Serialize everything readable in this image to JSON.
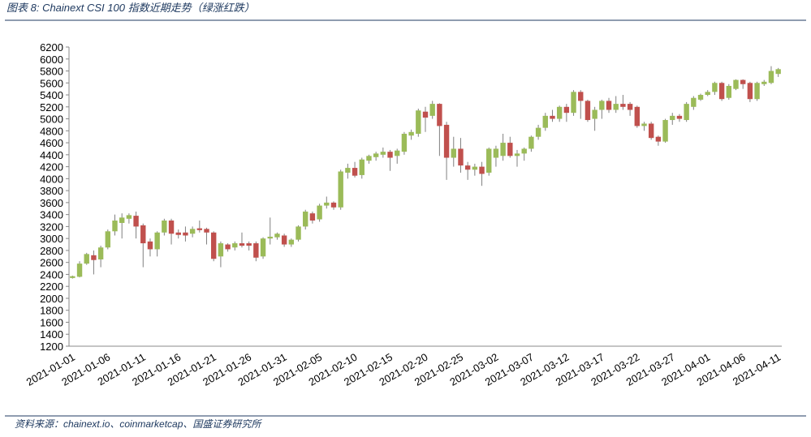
{
  "chart_data": {
    "type": "candlestick",
    "title": "图表 8:  Chainext CSI 100 指数近期走势（绿涨红跌）",
    "source": "资料来源：chainext.io、coinmarketcap、国盛证券研究所",
    "up_color": "#9bbb59",
    "down_color": "#c0504d",
    "wick_color": "#808080",
    "categories": [
      "2021-01-01",
      null,
      null,
      null,
      null,
      "2021-01-06",
      null,
      null,
      null,
      null,
      "2021-01-11",
      null,
      null,
      null,
      null,
      "2021-01-16",
      null,
      null,
      null,
      null,
      "2021-01-21",
      null,
      null,
      null,
      null,
      "2021-01-26",
      null,
      null,
      null,
      null,
      "2021-01-31",
      null,
      null,
      null,
      null,
      "2021-02-05",
      null,
      null,
      null,
      null,
      "2021-02-10",
      null,
      null,
      null,
      null,
      "2021-02-15",
      null,
      null,
      null,
      null,
      "2021-02-20",
      null,
      null,
      null,
      null,
      "2021-02-25",
      null,
      null,
      null,
      null,
      "2021-03-02",
      null,
      null,
      null,
      null,
      "2021-03-07",
      null,
      null,
      null,
      null,
      "2021-03-12",
      null,
      null,
      null,
      null,
      "2021-03-17",
      null,
      null,
      null,
      null,
      "2021-03-22",
      null,
      null,
      null,
      null,
      "2021-03-27",
      null,
      null,
      null,
      null,
      "2021-04-01",
      null,
      null,
      null,
      null,
      "2021-04-06",
      null,
      null,
      null,
      null,
      "2021-04-11"
    ],
    "open": [
      2340,
      2360,
      2580,
      2720,
      2650,
      2850,
      3120,
      3260,
      3330,
      3380,
      3220,
      2950,
      2820,
      3100,
      3300,
      3100,
      3100,
      3080,
      3170,
      3160,
      3100,
      2700,
      2900,
      2850,
      2920,
      2920,
      2920,
      2700,
      3000,
      3020,
      3050,
      2900,
      2980,
      3200,
      3420,
      3320,
      3550,
      3600,
      3520,
      4100,
      4180,
      4060,
      4300,
      4360,
      4400,
      4450,
      4380,
      4450,
      4720,
      4750,
      5120,
      5050,
      5250,
      4900,
      4350,
      4500,
      4220,
      4150,
      4200,
      4100,
      4350,
      4380,
      4600,
      4380,
      4420,
      4500,
      4700,
      4850,
      5050,
      5000,
      5200,
      5100,
      5450,
      5300,
      5000,
      5150,
      5300,
      5150,
      5250,
      5250,
      5200,
      4880,
      4920,
      4700,
      4620,
      4980,
      5050,
      4980,
      5200,
      5320,
      5400,
      5450,
      5600,
      5350,
      5500,
      5650,
      5600,
      5330,
      5580,
      5600,
      5750
    ],
    "high": [
      2380,
      2620,
      2760,
      2800,
      2880,
      3150,
      3400,
      3420,
      3420,
      3450,
      3250,
      3000,
      3120,
      3330,
      3330,
      3150,
      3200,
      3200,
      3300,
      3180,
      3120,
      2950,
      2920,
      2950,
      3100,
      2950,
      2950,
      3020,
      3350,
      3100,
      3080,
      3000,
      3220,
      3480,
      3450,
      3580,
      3700,
      3620,
      4150,
      4250,
      4280,
      4350,
      4400,
      4450,
      4520,
      4480,
      4500,
      4780,
      4820,
      5170,
      5200,
      5300,
      5260,
      4950,
      4700,
      4680,
      4280,
      4250,
      4280,
      4520,
      4550,
      4750,
      4700,
      4480,
      4520,
      4720,
      4900,
      5100,
      5150,
      5220,
      5250,
      5480,
      5480,
      5320,
      5200,
      5320,
      5350,
      5380,
      5400,
      5280,
      5220,
      4950,
      4950,
      4720,
      5000,
      5100,
      5080,
      5280,
      5380,
      5420,
      5480,
      5620,
      5620,
      5580,
      5660,
      5660,
      5620,
      5620,
      5650,
      5880,
      5850
    ],
    "low": [
      2330,
      2350,
      2560,
      2400,
      2520,
      2820,
      3050,
      3000,
      3250,
      3000,
      2520,
      2700,
      2700,
      3050,
      2900,
      3000,
      2950,
      3020,
      3100,
      2900,
      2620,
      2520,
      2780,
      2800,
      2850,
      2800,
      2620,
      2660,
      2900,
      2980,
      2860,
      2860,
      2950,
      3150,
      3250,
      3280,
      3500,
      3480,
      3480,
      4000,
      4020,
      4000,
      4250,
      4300,
      4350,
      4130,
      4250,
      4400,
      4650,
      4700,
      4780,
      5000,
      4380,
      3980,
      4200,
      4100,
      3980,
      4050,
      3880,
      4050,
      4200,
      4300,
      4350,
      4200,
      4300,
      4450,
      4650,
      4800,
      4950,
      4950,
      4950,
      5050,
      5000,
      4950,
      4800,
      5000,
      5100,
      5100,
      5150,
      5050,
      4850,
      4800,
      4650,
      4550,
      4600,
      4900,
      4950,
      4950,
      5150,
      5300,
      5380,
      5400,
      5300,
      5320,
      5480,
      5500,
      5280,
      5300,
      5550,
      5580,
      5700
    ],
    "close": [
      2370,
      2580,
      2740,
      2640,
      2850,
      3120,
      3300,
      3350,
      3390,
      3200,
      2920,
      2820,
      3100,
      3300,
      3080,
      3060,
      3050,
      3160,
      3140,
      3100,
      2660,
      2920,
      2820,
      2920,
      2880,
      2880,
      2680,
      3000,
      3030,
      3080,
      2900,
      2980,
      3200,
      3450,
      3300,
      3550,
      3600,
      3520,
      4120,
      4180,
      4050,
      4320,
      4380,
      4420,
      4450,
      4350,
      4470,
      4750,
      4780,
      5140,
      5020,
      5250,
      4880,
      4350,
      4500,
      4220,
      4150,
      4200,
      4080,
      4500,
      4500,
      4600,
      4380,
      4420,
      4500,
      4700,
      4850,
      5050,
      5000,
      5200,
      5100,
      5450,
      5300,
      4980,
      5150,
      5300,
      5150,
      5250,
      5200,
      5150,
      4880,
      4920,
      4680,
      4620,
      4980,
      5050,
      5000,
      5250,
      5350,
      5400,
      5450,
      5600,
      5330,
      5550,
      5650,
      5580,
      5330,
      5600,
      5620,
      5800,
      5830
    ],
    "ylim": [
      1200,
      6200
    ],
    "yticks": [
      1200,
      1400,
      1600,
      1800,
      2000,
      2200,
      2400,
      2600,
      2800,
      3000,
      3200,
      3400,
      3600,
      3800,
      4000,
      4200,
      4400,
      4600,
      4800,
      5000,
      5200,
      5400,
      5600,
      5800,
      6000,
      6200
    ]
  }
}
